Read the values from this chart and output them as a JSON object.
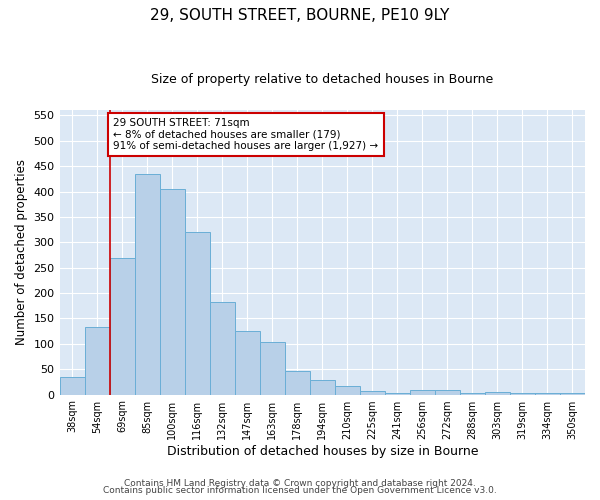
{
  "title_line1": "29, SOUTH STREET, BOURNE, PE10 9LY",
  "title_line2": "Size of property relative to detached houses in Bourne",
  "xlabel": "Distribution of detached houses by size in Bourne",
  "ylabel": "Number of detached properties",
  "bar_labels": [
    "38sqm",
    "54sqm",
    "69sqm",
    "85sqm",
    "100sqm",
    "116sqm",
    "132sqm",
    "147sqm",
    "163sqm",
    "178sqm",
    "194sqm",
    "210sqm",
    "225sqm",
    "241sqm",
    "256sqm",
    "272sqm",
    "288sqm",
    "303sqm",
    "319sqm",
    "334sqm",
    "350sqm"
  ],
  "bar_values": [
    35,
    133,
    270,
    435,
    405,
    320,
    183,
    126,
    104,
    47,
    29,
    16,
    7,
    4,
    9,
    9,
    4,
    5,
    4,
    4,
    4
  ],
  "bar_color": "#b8d0e8",
  "bar_edge_color": "#6aaed6",
  "vline_x": 1.5,
  "vline_color": "#cc0000",
  "annotation_text": "29 SOUTH STREET: 71sqm\n← 8% of detached houses are smaller (179)\n91% of semi-detached houses are larger (1,927) →",
  "annotation_box_color": "#ffffff",
  "annotation_box_edge": "#cc0000",
  "ylim": [
    0,
    560
  ],
  "yticks": [
    0,
    50,
    100,
    150,
    200,
    250,
    300,
    350,
    400,
    450,
    500,
    550
  ],
  "footer_line1": "Contains HM Land Registry data © Crown copyright and database right 2024.",
  "footer_line2": "Contains public sector information licensed under the Open Government Licence v3.0.",
  "bg_color": "#ffffff",
  "plot_bg_color": "#dce8f5"
}
